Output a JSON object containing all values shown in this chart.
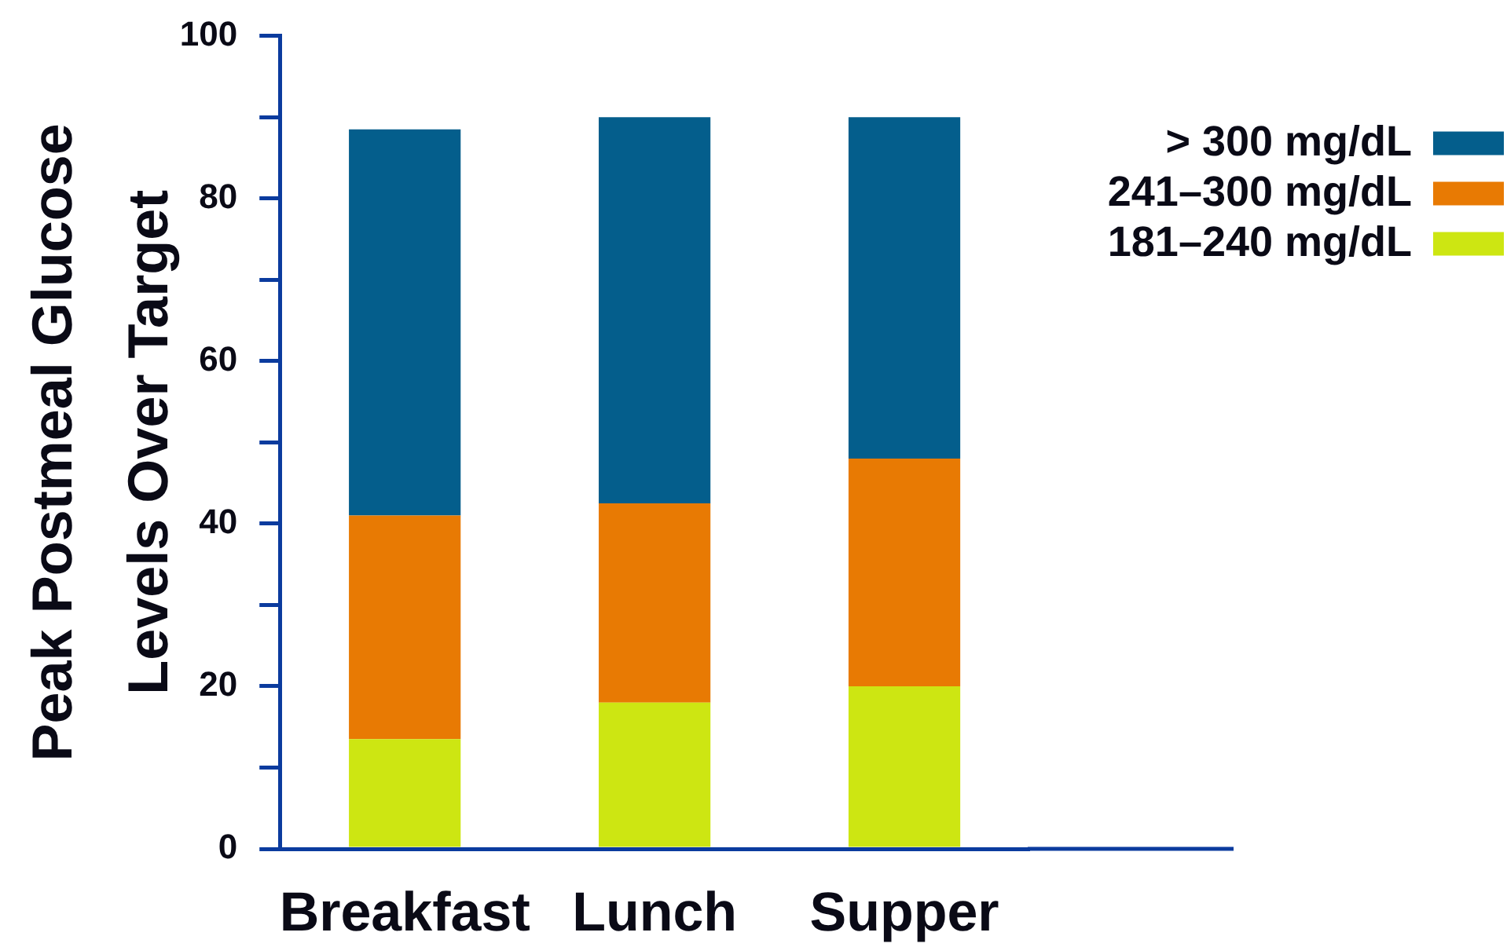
{
  "chart_data": {
    "type": "bar",
    "ylabel": "Peak Postmeal Glucose Levels Over Target",
    "categories": [
      "Breakfast",
      "Lunch",
      "Supper"
    ],
    "series": [
      {
        "name": "181–240 mg/dL",
        "color": "#cde612",
        "values": [
          13.5,
          18,
          20
        ]
      },
      {
        "name": "241–300 mg/dL",
        "color": "#e87a03",
        "values": [
          27.5,
          24.5,
          28
        ]
      },
      {
        "name": "> 300 mg/dL",
        "color": "#045e8c",
        "values": [
          47.5,
          47.5,
          42
        ]
      }
    ],
    "stacked": true,
    "ylim": [
      0,
      100
    ],
    "yticks": [
      0,
      {
        "value": 10,
        "label": null
      },
      20,
      {
        "value": 30,
        "label": null
      },
      40,
      {
        "value": 50,
        "label": null
      },
      60,
      {
        "value": 70,
        "label": null
      },
      80,
      {
        "value": 90,
        "label": null
      },
      100
    ],
    "grid": false,
    "legend": "top right"
  }
}
